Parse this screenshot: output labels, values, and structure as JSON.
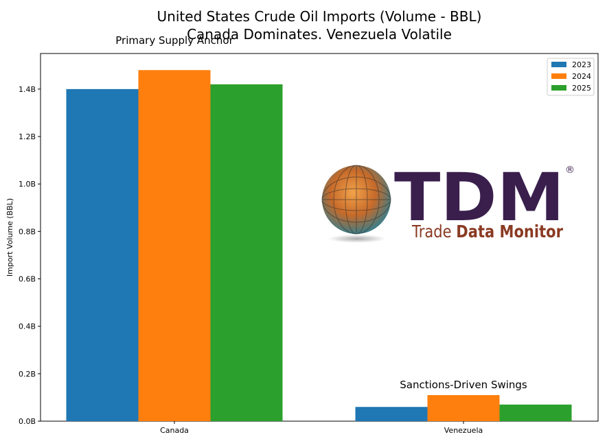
{
  "chart_data": {
    "type": "bar",
    "title": [
      "United States Crude Oil Imports (Volume - BBL)",
      "Canada Dominates. Venezuela Volatile"
    ],
    "xlabel": "",
    "ylabel": "Import Volume (BBL)",
    "categories": [
      "Canada",
      "Venezuela"
    ],
    "series": [
      {
        "name": "2023",
        "values": [
          1400000000,
          60000000
        ],
        "color": "#1f77b4"
      },
      {
        "name": "2024",
        "values": [
          1480000000,
          110000000
        ],
        "color": "#ff7f0e"
      },
      {
        "name": "2025",
        "values": [
          1420000000,
          70000000
        ],
        "color": "#2ca02c"
      }
    ],
    "ylim": [
      0,
      1550000000
    ],
    "yticks": [
      0,
      200000000,
      400000000,
      600000000,
      800000000,
      1000000000,
      1200000000,
      1400000000
    ],
    "ytick_labels": [
      "0.0B",
      "0.2B",
      "0.4B",
      "0.6B",
      "0.8B",
      "1.0B",
      "1.2B",
      "1.4B"
    ],
    "annotations": [
      {
        "text": "Primary Supply Anchor",
        "category": "Canada"
      },
      {
        "text": "Sanctions-Driven Swings",
        "category": "Venezuela"
      }
    ],
    "legend": "top-right",
    "grid": false
  },
  "watermark": {
    "name": "TDM",
    "tagline_light": "Trade ",
    "tagline_bold": "Data Monitor",
    "registered": "®"
  }
}
